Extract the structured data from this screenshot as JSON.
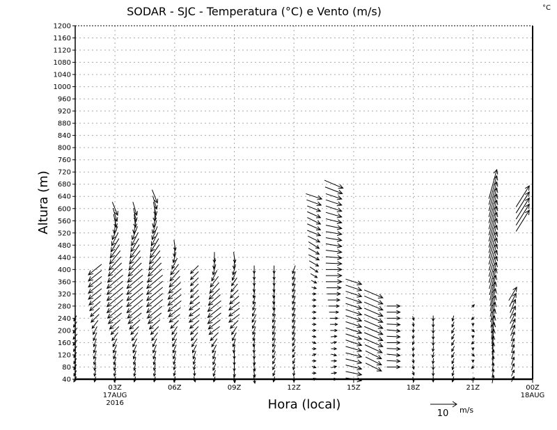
{
  "chart_data": {
    "type": "vector",
    "title": "SODAR - SJC - Temperatura (°C) e Vento (m/s)",
    "corner_label": "°C",
    "xlabel": "Hora (local)",
    "ylabel": "Altura (m)",
    "xlim_hours": [
      1,
      24
    ],
    "ylim": [
      40,
      1200
    ],
    "ytick_step": 40,
    "grid": true,
    "xticks": [
      {
        "hour": 3,
        "label": "03Z",
        "sub": [
          "17AUG",
          "2016"
        ]
      },
      {
        "hour": 6,
        "label": "06Z",
        "sub": []
      },
      {
        "hour": 9,
        "label": "09Z",
        "sub": []
      },
      {
        "hour": 12,
        "label": "12Z",
        "sub": []
      },
      {
        "hour": 15,
        "label": "15Z",
        "sub": []
      },
      {
        "hour": 18,
        "label": "18Z",
        "sub": []
      },
      {
        "hour": 21,
        "label": "21Z",
        "sub": []
      },
      {
        "hour": 24,
        "label": "00Z",
        "sub": [
          "18AUG"
        ]
      }
    ],
    "reference_vector": {
      "speed": 10,
      "label": "10",
      "units": "m/s"
    },
    "level_step_m": 40,
    "columns": [
      {
        "hour": 1,
        "h0": 40,
        "uv": [
          [
            -1,
            -2
          ],
          [
            -1,
            -2
          ],
          [
            -1,
            -2
          ],
          [
            -1.5,
            -2
          ],
          [
            -1.5,
            -2
          ],
          [
            -1,
            -2
          ]
        ]
      },
      {
        "hour": 2,
        "h0": 40,
        "uv": [
          [
            -0.5,
            -2
          ],
          [
            -0.5,
            -2.5
          ],
          [
            -1,
            -3
          ],
          [
            -1,
            -3
          ],
          [
            -1.5,
            -3
          ],
          [
            -3,
            -3
          ],
          [
            -4,
            -3.5
          ],
          [
            -5,
            -4
          ],
          [
            -5,
            -4
          ],
          [
            -5,
            -4
          ]
        ]
      },
      {
        "hour": 3,
        "h0": 40,
        "uv": [
          [
            -0.5,
            -2
          ],
          [
            -0.5,
            -2.5
          ],
          [
            -1,
            -3
          ],
          [
            -1.5,
            -3
          ],
          [
            -3,
            -3
          ],
          [
            -5,
            -4
          ],
          [
            -6,
            -5
          ],
          [
            -6,
            -5
          ],
          [
            -6,
            -5
          ],
          [
            -5,
            -5
          ],
          [
            -4,
            -5
          ],
          [
            -3,
            -5
          ],
          [
            -2,
            -5
          ],
          [
            1,
            -5
          ],
          [
            2,
            -5
          ]
        ]
      },
      {
        "hour": 4,
        "h0": 40,
        "uv": [
          [
            -0.5,
            -2
          ],
          [
            -0.5,
            -2.5
          ],
          [
            -1,
            -3
          ],
          [
            -1.5,
            -3
          ],
          [
            -3,
            -3
          ],
          [
            -5,
            -4
          ],
          [
            -6,
            -5
          ],
          [
            -6,
            -5
          ],
          [
            -6,
            -5
          ],
          [
            -5,
            -5
          ],
          [
            -4,
            -5
          ],
          [
            -3,
            -5
          ],
          [
            -2,
            -5
          ],
          [
            0.5,
            -5
          ],
          [
            1.5,
            -5
          ]
        ]
      },
      {
        "hour": 5,
        "h0": 40,
        "uv": [
          [
            -0.5,
            -2
          ],
          [
            -0.5,
            -2.5
          ],
          [
            -1,
            -3
          ],
          [
            -1.5,
            -3
          ],
          [
            -3,
            -3
          ],
          [
            -5,
            -4
          ],
          [
            -6,
            -5
          ],
          [
            -6,
            -5
          ],
          [
            -6,
            -5
          ],
          [
            -5,
            -5
          ],
          [
            -4,
            -5
          ],
          [
            -3,
            -5
          ],
          [
            -2,
            -5
          ],
          [
            -1,
            -5
          ],
          [
            1,
            -5
          ],
          [
            2,
            -5
          ]
        ]
      },
      {
        "hour": 6,
        "h0": 40,
        "uv": [
          [
            -0.5,
            -2
          ],
          [
            -0.5,
            -2
          ],
          [
            -1,
            -3
          ],
          [
            -1.5,
            -3
          ],
          [
            -2,
            -3
          ],
          [
            -4,
            -3
          ],
          [
            -5,
            -4
          ],
          [
            -5,
            -4
          ],
          [
            -4,
            -4
          ],
          [
            -3,
            -4
          ],
          [
            -1,
            -4
          ],
          [
            0.5,
            -4
          ]
        ]
      },
      {
        "hour": 7,
        "h0": 40,
        "uv": [
          [
            0.5,
            -2
          ],
          [
            -0.5,
            -2
          ],
          [
            -1,
            -3
          ],
          [
            -2,
            -3
          ],
          [
            -3,
            -3
          ],
          [
            -4,
            -3
          ],
          [
            -4,
            -3
          ],
          [
            -3,
            -3
          ],
          [
            -3,
            -3
          ],
          [
            -3,
            -3
          ]
        ]
      },
      {
        "hour": 8,
        "h0": 40,
        "uv": [
          [
            -0.5,
            -2
          ],
          [
            -1,
            -2.5
          ],
          [
            -1,
            -3
          ],
          [
            -2,
            -3
          ],
          [
            -4,
            -3
          ],
          [
            -5,
            -4
          ],
          [
            -5,
            -4
          ],
          [
            -4,
            -4
          ],
          [
            -3,
            -4
          ],
          [
            -1,
            -4
          ],
          [
            0,
            -4
          ]
        ]
      },
      {
        "hour": 9,
        "h0": 40,
        "uv": [
          [
            0.5,
            -2.5
          ],
          [
            0,
            -3
          ],
          [
            0,
            -3
          ],
          [
            -1,
            -3
          ],
          [
            -2,
            -3
          ],
          [
            -4,
            -3
          ],
          [
            -4,
            -3
          ],
          [
            -3,
            -3
          ],
          [
            -2,
            -3
          ],
          [
            -1,
            -4
          ],
          [
            0.5,
            -4
          ]
        ]
      },
      {
        "hour": 10,
        "h0": 40,
        "uv": [
          [
            0.5,
            -3
          ],
          [
            0.5,
            -3
          ],
          [
            0,
            -3
          ],
          [
            -0.5,
            -3
          ],
          [
            -1,
            -3
          ],
          [
            -1.5,
            -3
          ],
          [
            -1,
            -3
          ],
          [
            -0.5,
            -3
          ],
          [
            0,
            -3
          ],
          [
            0,
            -3
          ]
        ]
      },
      {
        "hour": 11,
        "h0": 40,
        "uv": [
          [
            -0.5,
            -2
          ],
          [
            -1,
            -2
          ],
          [
            -1,
            -2.5
          ],
          [
            -1,
            -3
          ],
          [
            -1,
            -3
          ],
          [
            -1,
            -3
          ],
          [
            -0.5,
            -3
          ],
          [
            -0.5,
            -3
          ],
          [
            0,
            -3
          ],
          [
            0,
            -3
          ]
        ]
      },
      {
        "hour": 12,
        "h0": 40,
        "uv": [
          [
            0,
            -2
          ],
          [
            -0.5,
            -2
          ],
          [
            -1,
            -2
          ],
          [
            -1,
            -2.5
          ],
          [
            -1,
            -3
          ],
          [
            -1,
            -3
          ],
          [
            -1,
            -3
          ],
          [
            -1,
            -3
          ],
          [
            -1,
            -3
          ],
          [
            -1,
            -3
          ]
        ]
      },
      {
        "hour": 13,
        "h0": 40,
        "uv": [
          [
            1.5,
            0.5
          ],
          [
            1.5,
            -0.5
          ],
          [
            1.5,
            0.5
          ],
          [
            1.5,
            -0.5
          ],
          [
            1.5,
            0
          ],
          [
            1.5,
            0
          ],
          [
            1.5,
            0
          ],
          [
            1.5,
            0
          ],
          [
            2,
            -1
          ],
          [
            3,
            -2
          ],
          [
            4,
            -2
          ],
          [
            4,
            -2.5
          ],
          [
            5,
            -2
          ],
          [
            5,
            -2.5
          ],
          [
            5,
            -2
          ],
          [
            6,
            -2
          ]
        ]
      },
      {
        "hour": 14,
        "h0": 40,
        "uv": [
          [
            2,
            0
          ],
          [
            2,
            0.5
          ],
          [
            2,
            -0.5
          ],
          [
            2,
            0.5
          ],
          [
            2.5,
            0
          ],
          [
            3,
            0
          ],
          [
            4,
            0
          ],
          [
            5,
            0
          ],
          [
            6,
            0
          ],
          [
            6,
            0
          ],
          [
            6,
            -0.5
          ],
          [
            6,
            -1
          ],
          [
            6,
            -1
          ],
          [
            6,
            -1.5
          ],
          [
            6,
            -2
          ],
          [
            6,
            -2
          ],
          [
            7,
            -3
          ]
        ]
      },
      {
        "hour": 15,
        "h0": 40,
        "uv": [
          [
            6,
            -1
          ],
          [
            6,
            -1.5
          ],
          [
            6,
            -1.5
          ],
          [
            6,
            -2
          ],
          [
            6,
            -2
          ],
          [
            6,
            -2
          ],
          [
            6,
            -2
          ],
          [
            6,
            -2
          ],
          [
            6,
            -2
          ]
        ]
      },
      {
        "hour": 16,
        "h0": 80,
        "uv": [
          [
            6,
            -3
          ],
          [
            6,
            -3
          ],
          [
            7,
            -3
          ],
          [
            7,
            -3
          ],
          [
            7,
            -3
          ],
          [
            7,
            -3
          ],
          [
            7,
            -3
          ]
        ]
      },
      {
        "hour": 17,
        "h0": 80,
        "uv": [
          [
            5,
            0
          ],
          [
            5,
            -0.5
          ],
          [
            5,
            0
          ],
          [
            5,
            -0.5
          ],
          [
            5,
            0
          ],
          [
            5,
            0
          ]
        ]
      },
      {
        "hour": 18,
        "h0": 40,
        "uv": [
          [
            0.5,
            -1.5
          ],
          [
            0.5,
            -1.5
          ],
          [
            0,
            -1.5
          ],
          [
            -0.5,
            -1.5
          ],
          [
            0,
            -1.5
          ],
          [
            0.5,
            -1.5
          ]
        ]
      },
      {
        "hour": 19,
        "h0": 40,
        "uv": [
          [
            0,
            -2
          ],
          [
            0,
            -2
          ],
          [
            -0.5,
            -2
          ],
          [
            0,
            -2
          ],
          [
            0,
            -2
          ],
          [
            0,
            -2
          ]
        ]
      },
      {
        "hour": 20,
        "h0": 40,
        "uv": [
          [
            -0.5,
            -2
          ],
          [
            -0.5,
            -2
          ],
          [
            -1,
            -2
          ],
          [
            -1,
            -2
          ],
          [
            -1,
            -2
          ],
          [
            -0.5,
            -2
          ]
        ]
      },
      {
        "hour": 21,
        "h0": 40,
        "uv": [
          [
            1,
            1
          ],
          [
            -1,
            -1
          ],
          [
            1,
            -1
          ],
          [
            -1,
            -1
          ],
          [
            1,
            -1
          ],
          [
            -1,
            -1
          ],
          [
            1,
            1
          ]
        ]
      },
      {
        "hour": 22,
        "h0": 40,
        "uv": [
          [
            0.5,
            3
          ],
          [
            0.5,
            3
          ],
          [
            0.5,
            4
          ],
          [
            0.5,
            5
          ],
          [
            1,
            6
          ],
          [
            1.5,
            7
          ],
          [
            2,
            8
          ],
          [
            2,
            9
          ],
          [
            2.5,
            10
          ],
          [
            3,
            10
          ],
          [
            3,
            10
          ],
          [
            3,
            10
          ],
          [
            3,
            11
          ],
          [
            3,
            11
          ],
          [
            3,
            11
          ],
          [
            3,
            11
          ],
          [
            3,
            11
          ]
        ]
      },
      {
        "hour": 23,
        "h0": 40,
        "uv": [
          [
            1,
            2
          ],
          [
            1,
            2.5
          ],
          [
            1,
            3
          ],
          [
            1,
            3
          ],
          [
            1.5,
            4
          ],
          [
            2,
            4
          ],
          [
            2,
            5
          ],
          [
            3,
            5
          ]
        ]
      },
      {
        "hour": 23.5,
        "h0": 560,
        "uv": [
          [
            5,
            8
          ],
          [
            5,
            8
          ],
          [
            5,
            8
          ]
        ]
      }
    ]
  }
}
